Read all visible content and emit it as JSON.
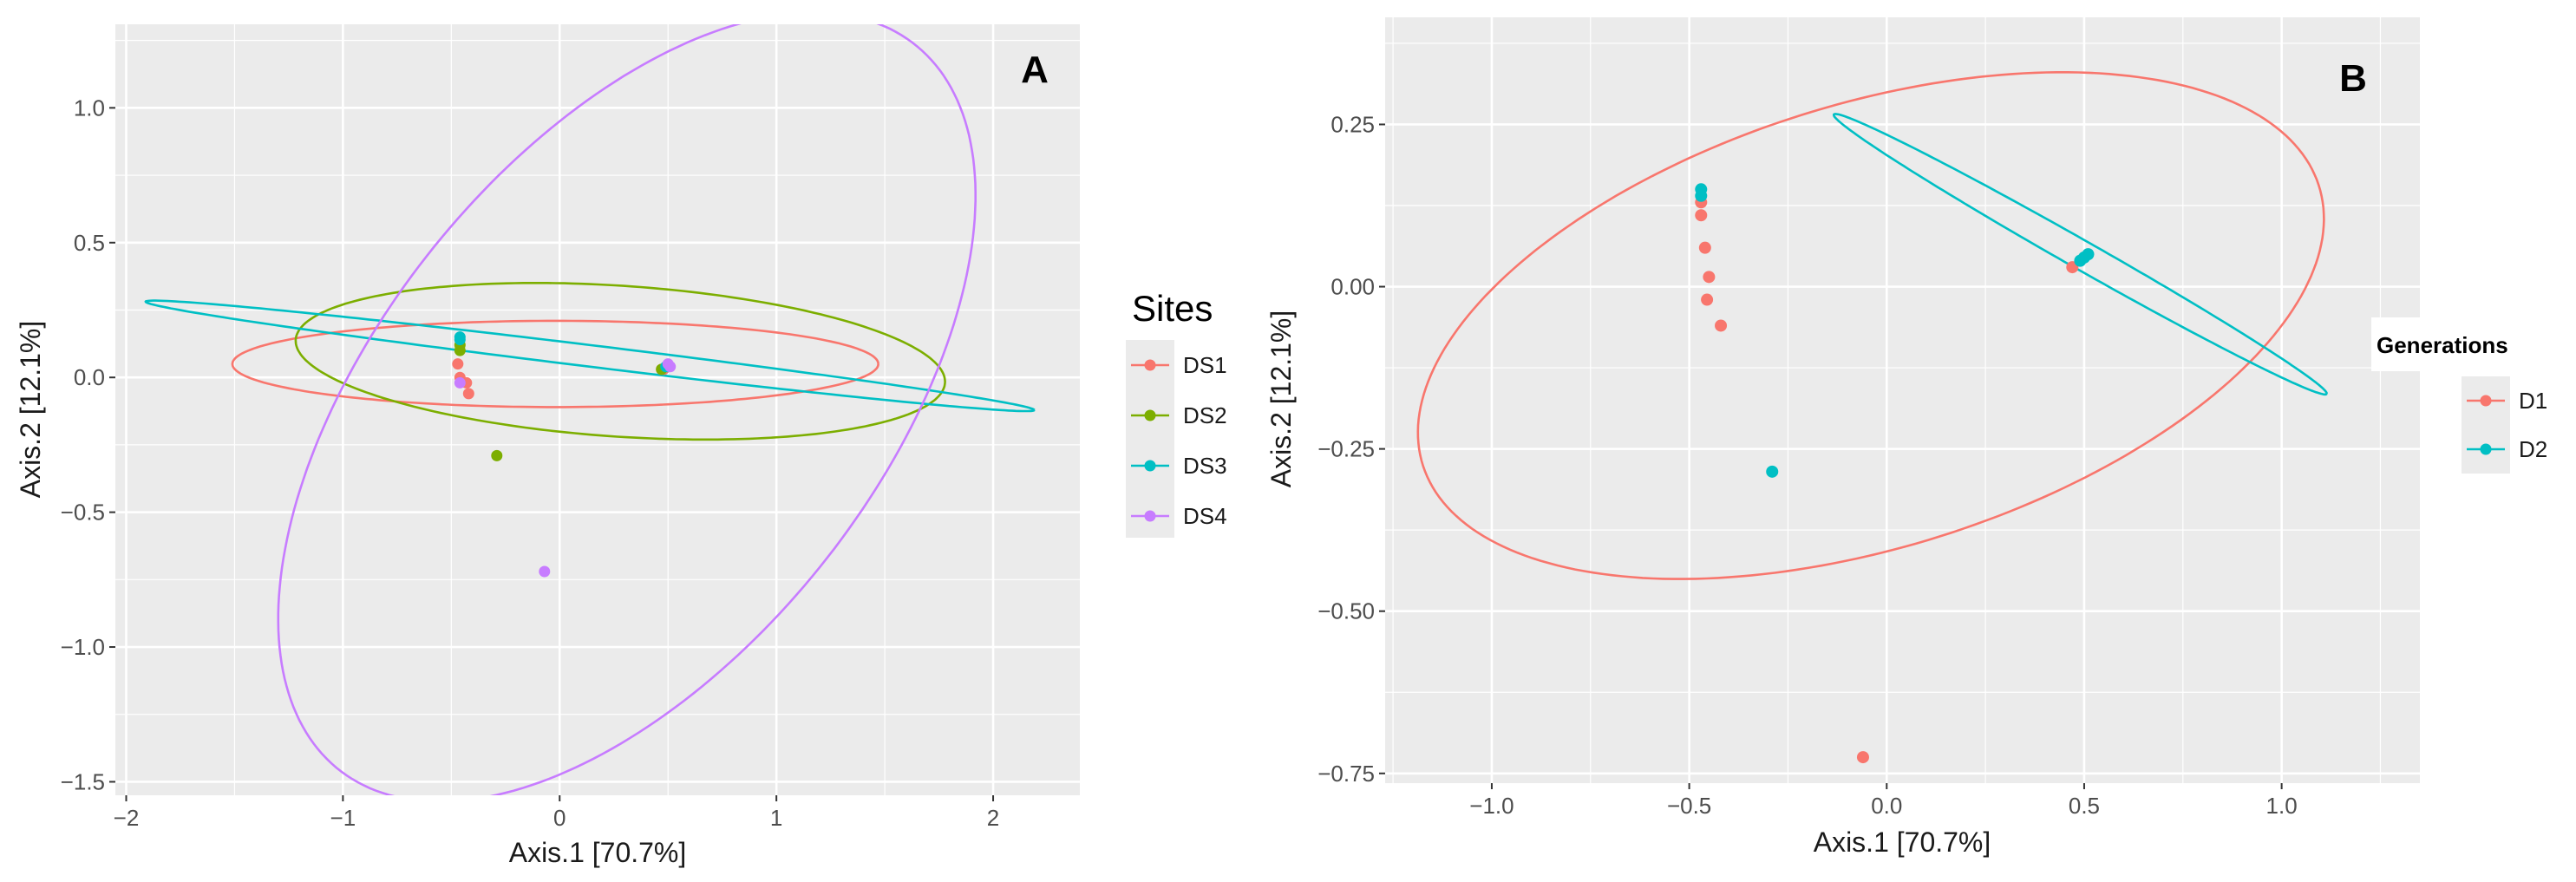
{
  "chart_data": [
    {
      "type": "scatter",
      "panel": "A",
      "xlabel": "Axis.1   [70.7%]",
      "ylabel": "Axis.2   [12.1%]",
      "xlim": [
        -2.05,
        2.4
      ],
      "ylim": [
        -1.55,
        1.31
      ],
      "x_ticks": [
        -2,
        -1,
        0,
        1,
        2
      ],
      "x_tick_labels": [
        "−2",
        "−1",
        "0",
        "1",
        "2"
      ],
      "y_ticks": [
        -1.5,
        -1.0,
        -0.5,
        0.0,
        0.5,
        1.0
      ],
      "y_tick_labels": [
        "−1.5",
        "−1.0",
        "−0.5",
        "0.0",
        "0.5",
        "1.0"
      ],
      "legend": {
        "title": "Sites",
        "position": "right"
      },
      "series": [
        {
          "name": "DS1",
          "color": "#F8766D",
          "points": [
            [
              -0.47,
              0.05
            ],
            [
              -0.46,
              0.0
            ],
            [
              -0.43,
              -0.02
            ],
            [
              -0.42,
              -0.06
            ],
            [
              0.47,
              0.03
            ],
            [
              0.48,
              0.03
            ]
          ],
          "ellipse": {
            "center": [
              -0.02,
              0.05
            ],
            "rx": 1.49,
            "ry": 0.16,
            "angle": 0
          }
        },
        {
          "name": "DS2",
          "color": "#7CAE00",
          "points": [
            [
              -0.46,
              0.12
            ],
            [
              -0.46,
              0.1
            ],
            [
              -0.29,
              -0.29
            ],
            [
              0.47,
              0.03
            ]
          ],
          "ellipse": {
            "center": [
              0.28,
              0.06
            ],
            "rx": 1.5,
            "ry": 0.28,
            "angle": -3
          }
        },
        {
          "name": "DS3",
          "color": "#00BFC4",
          "points": [
            [
              -0.46,
              0.15
            ],
            [
              -0.46,
              0.14
            ],
            [
              0.49,
              0.04
            ],
            [
              0.5,
              0.04
            ]
          ],
          "ellipse": {
            "center": [
              0.14,
              0.08
            ],
            "rx": 2.06,
            "ry": 0.04,
            "angle": -5.6
          }
        },
        {
          "name": "DS4",
          "color": "#C77CFF",
          "points": [
            [
              -0.46,
              -0.02
            ],
            [
              -0.07,
              -0.72
            ],
            [
              0.5,
              0.05
            ],
            [
              0.51,
              0.04
            ]
          ],
          "ellipse": {
            "center": [
              0.31,
              -0.11
            ],
            "rx": 1.91,
            "ry": 1.04,
            "angle": 40
          }
        }
      ]
    },
    {
      "type": "scatter",
      "panel": "B",
      "xlabel": "Axis.1   [70.7%]",
      "ylabel": "Axis.2   [12.1%]",
      "xlim": [
        -1.27,
        1.35
      ],
      "ylim": [
        -0.765,
        0.415
      ],
      "x_ticks": [
        -1.0,
        -0.5,
        0.0,
        0.5,
        1.0
      ],
      "x_tick_labels": [
        "−1.0",
        "−0.5",
        "0.0",
        "0.5",
        "1.0"
      ],
      "y_ticks": [
        -0.75,
        -0.5,
        -0.25,
        0.0,
        0.25
      ],
      "y_tick_labels": [
        "−0.75",
        "−0.50",
        "−0.25",
        "0.00",
        "0.25"
      ],
      "legend": {
        "title": "Generations",
        "position": "right"
      },
      "series": [
        {
          "name": "D1",
          "color": "#F8766D",
          "points": [
            [
              -0.47,
              0.13
            ],
            [
              -0.47,
              0.11
            ],
            [
              -0.46,
              0.06
            ],
            [
              -0.45,
              0.015
            ],
            [
              -0.455,
              -0.02
            ],
            [
              -0.42,
              -0.06
            ],
            [
              -0.06,
              -0.725
            ],
            [
              0.47,
              0.03
            ]
          ],
          "ellipse": {
            "center": [
              -0.04,
              -0.06
            ],
            "rx": 1.16,
            "ry": 0.35,
            "angle": 9
          }
        },
        {
          "name": "D2",
          "color": "#00BFC4",
          "points": [
            [
              -0.47,
              0.15
            ],
            [
              -0.47,
              0.14
            ],
            [
              -0.29,
              -0.285
            ],
            [
              0.49,
              0.04
            ],
            [
              0.5,
              0.045
            ],
            [
              0.51,
              0.05
            ]
          ],
          "ellipse": {
            "center": [
              0.49,
              0.05
            ],
            "rx": 0.66,
            "ry": 0.024,
            "angle": -19
          }
        }
      ]
    }
  ]
}
